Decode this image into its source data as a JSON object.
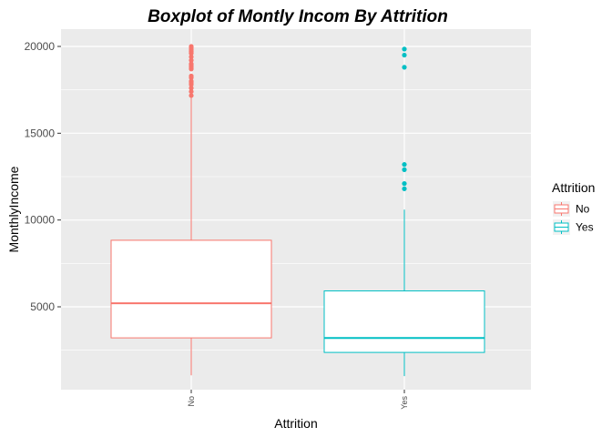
{
  "chart_data": {
    "type": "boxplot",
    "title": "Boxplot of Montly Incom By  Attrition",
    "xlabel": "Attrition",
    "ylabel": "MonthlyIncome",
    "ylim": [
      0,
      21000
    ],
    "yticks": [
      5000,
      10000,
      15000,
      20000
    ],
    "ytick_labels": [
      "5000",
      "10000",
      "15000",
      "20000"
    ],
    "grid": true,
    "legend": {
      "title": "Attrition",
      "placement": "right"
    },
    "categories": [
      "No",
      "Yes"
    ],
    "series": [
      {
        "name": "No",
        "color": "#F8766D",
        "min": 1051,
        "q1": 3211,
        "median": 5204,
        "q3": 8834,
        "whisker_high": 17100,
        "outliers": [
          17170,
          17400,
          17600,
          17800,
          17900,
          18000,
          18200,
          18300,
          18700,
          18800,
          18900,
          19000,
          19200,
          19400,
          19600,
          19700,
          19800,
          19900,
          20000
        ]
      },
      {
        "name": "Yes",
        "color": "#00BFC4",
        "min": 1009,
        "q1": 2373,
        "median": 3202,
        "q3": 5916,
        "whisker_high": 10600,
        "outliers": [
          11800,
          12100,
          12900,
          13200,
          18800,
          19500,
          19850
        ]
      }
    ]
  }
}
